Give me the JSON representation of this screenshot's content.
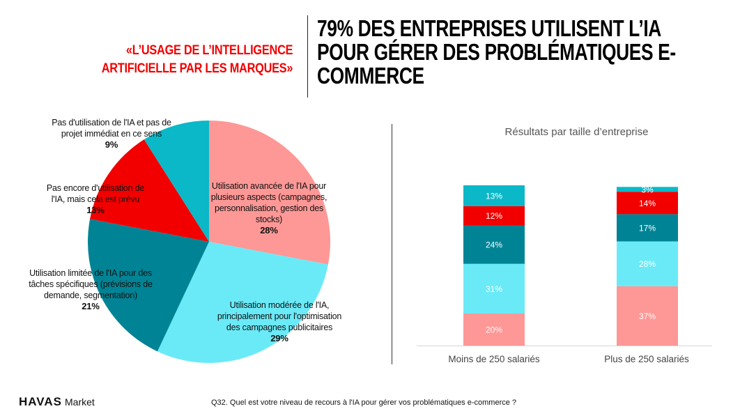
{
  "header": {
    "subtitle_lines": [
      "«L’USAGE DE L’INTELLIGENCE",
      "ARTIFICIELLE PAR LES MARQUES»"
    ],
    "title_lines": [
      "79% DES ENTREPRISES UTILISENT L’IA",
      "POUR GÉRER DES PROBLÉMATIQUES E-",
      "COMMERCE"
    ]
  },
  "colors": {
    "avancee": "#fe9896",
    "moderee": "#6aeaf7",
    "limitee": "#008495",
    "prevu": "#f20000",
    "aucune": "#0ab8c8",
    "accent": "#f20000"
  },
  "chart_data": [
    {
      "type": "pie",
      "title": "",
      "slices": [
        {
          "key": "avancee",
          "label_lines": [
            "Utilisation avancée de l'IA pour",
            "plusieurs aspects (campagnes,",
            "personnalisation, gestion des",
            "stocks)"
          ],
          "value": 28,
          "value_label": "28%"
        },
        {
          "key": "moderee",
          "label_lines": [
            "Utilisation modérée de l'IA,",
            "principalement pour l'optimisation",
            "des campagnes publicitaires"
          ],
          "value": 29,
          "value_label": "29%"
        },
        {
          "key": "limitee",
          "label_lines": [
            "Utilisation limitée de l'IA pour des",
            "tâches spécifiques (prévisions de",
            "demande, segmentation)"
          ],
          "value": 21,
          "value_label": "21%"
        },
        {
          "key": "prevu",
          "label_lines": [
            "Pas encore d'utilisation de",
            "l'IA, mais cela est prévu"
          ],
          "value": 13,
          "value_label": "13%"
        },
        {
          "key": "aucune",
          "label_lines": [
            "Pas d'utilisation de l'IA et pas de",
            "projet immédiat en ce sens"
          ],
          "value": 9,
          "value_label": "9%"
        }
      ]
    },
    {
      "type": "bar",
      "stacked": true,
      "title": "Résultats par taille d’entreprise",
      "categories": [
        "Moins de 250 salariés",
        "Plus de 250 salariés"
      ],
      "ylim": [
        0,
        100
      ],
      "series": [
        {
          "key": "avancee",
          "values": [
            20,
            37
          ],
          "labels": [
            "20%",
            "37%"
          ]
        },
        {
          "key": "moderee",
          "values": [
            31,
            28
          ],
          "labels": [
            "31%",
            "28%"
          ]
        },
        {
          "key": "limitee",
          "values": [
            24,
            17
          ],
          "labels": [
            "24%",
            "17%"
          ]
        },
        {
          "key": "prevu",
          "values": [
            12,
            14
          ],
          "labels": [
            "12%",
            "14%"
          ]
        },
        {
          "key": "aucune",
          "values": [
            13,
            3
          ],
          "labels": [
            "13%",
            "3%"
          ]
        }
      ]
    }
  ],
  "footer": {
    "brand": "HAVAS",
    "brand_suffix": "Market",
    "question": "Q32. Quel est votre niveau de recours à l'IA pour gérer vos problématiques e-commerce ?"
  }
}
